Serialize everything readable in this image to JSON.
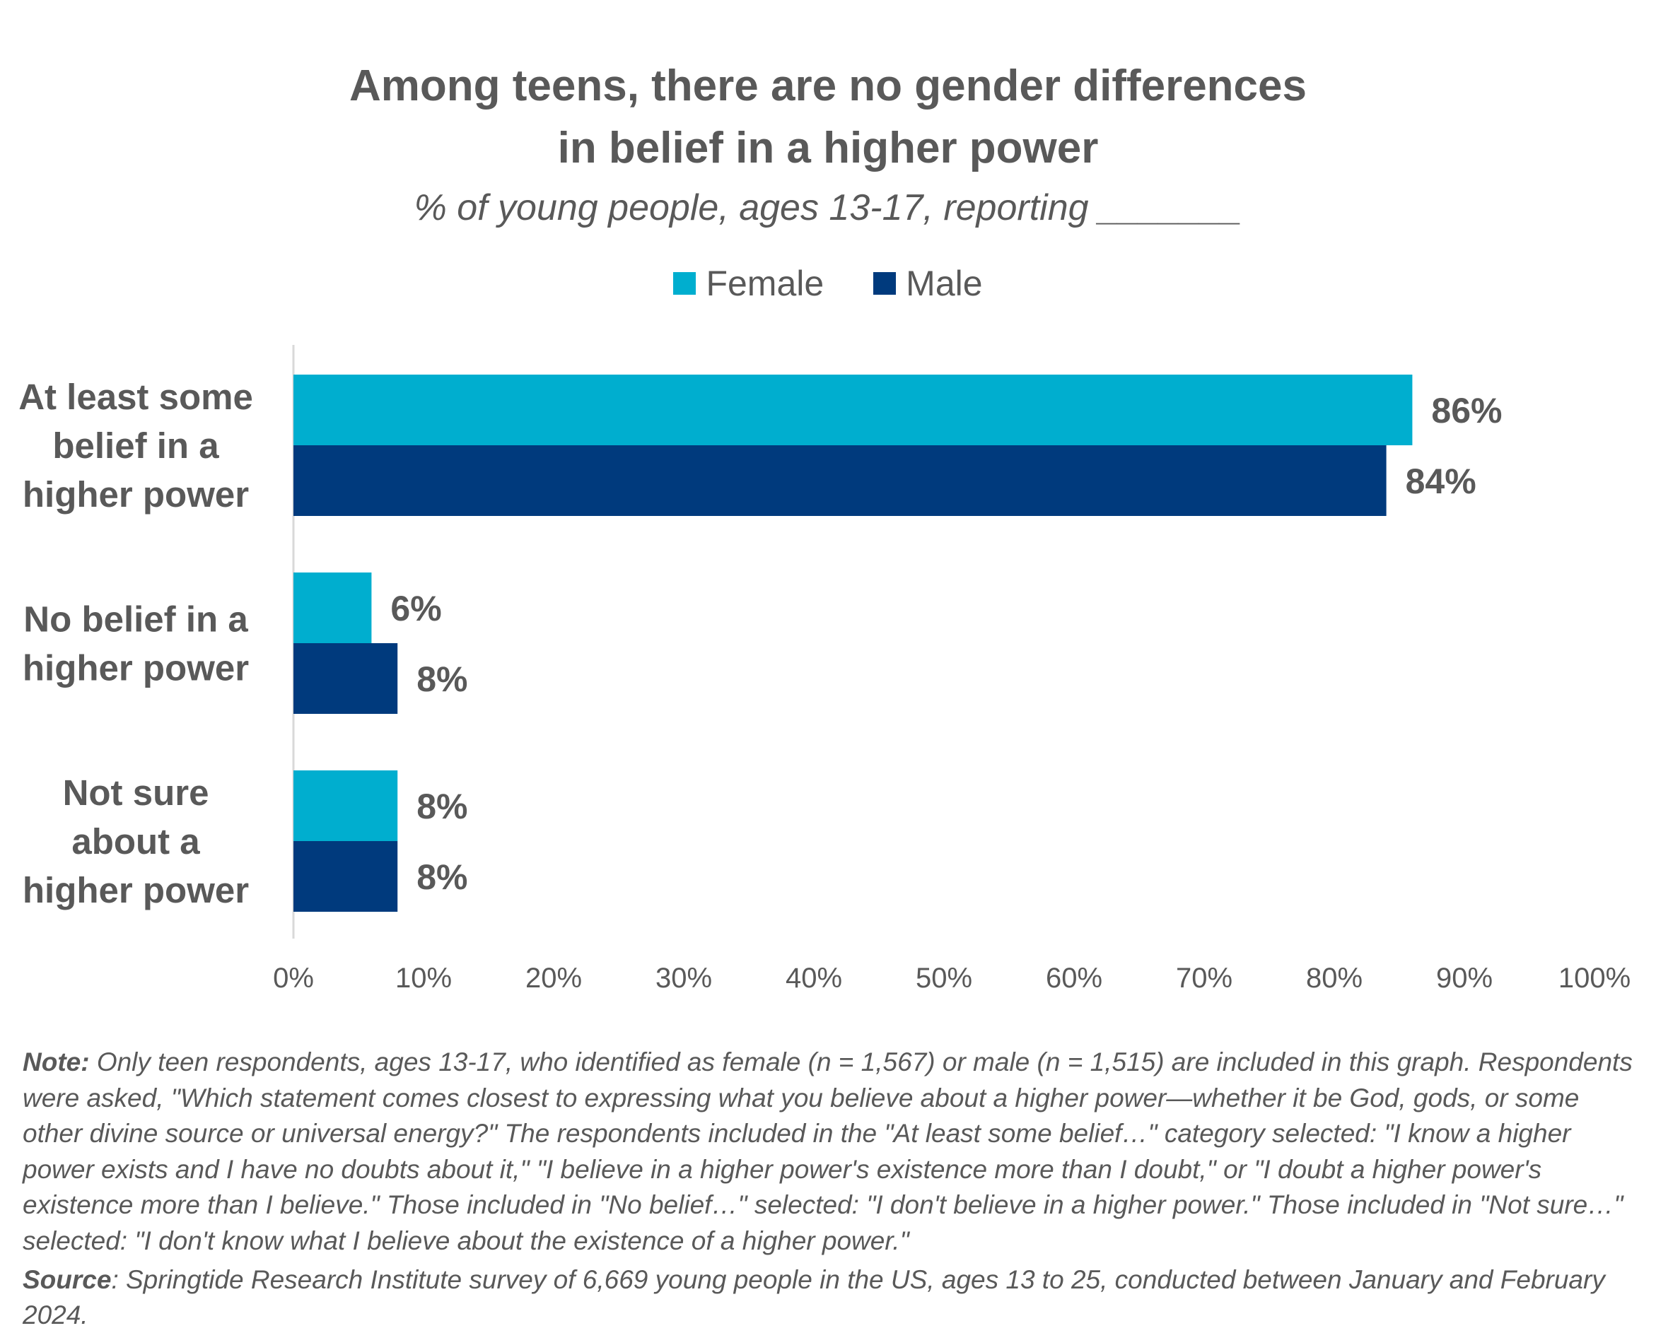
{
  "chart_data": {
    "type": "bar",
    "orientation": "horizontal",
    "title": "Among teens, there are no gender differences in belief in a higher power",
    "title_lines": [
      "Among teens, there are no gender differences",
      "in belief in a higher power"
    ],
    "subtitle": "% of young people, ages 13-17, reporting _______",
    "categories": [
      [
        "At least some",
        "belief in a",
        "higher power"
      ],
      [
        "No belief in a",
        "higher power"
      ],
      [
        "Not sure",
        "about a",
        "higher power"
      ]
    ],
    "series": [
      {
        "name": "Female",
        "color": "#00AECF",
        "values": [
          86,
          6,
          8
        ],
        "labels": [
          "86%",
          "6%",
          "8%"
        ]
      },
      {
        "name": "Male",
        "color": "#003A7D",
        "values": [
          84,
          8,
          8
        ],
        "labels": [
          "84%",
          "8%",
          "8%"
        ]
      }
    ],
    "xlim": [
      0,
      100
    ],
    "xticks": [
      "0%",
      "10%",
      "20%",
      "30%",
      "40%",
      "50%",
      "60%",
      "70%",
      "80%",
      "90%",
      "100%"
    ],
    "legend": "top-center",
    "grid": false
  },
  "note": {
    "label": "Note:",
    "text": " Only teen respondents, ages 13-17, who identified as female (n = 1,567) or male (n = 1,515) are included in this graph. Respondents were asked, \"Which statement comes closest to expressing what you believe about a higher power—whether it be God, gods, or some other divine source or universal energy?\" The respondents included in the \"At least some belief…\" category selected: \"I know a higher power exists and I have no doubts about it,\" \"I believe in a higher power's existence more than I doubt,\" or \"I doubt a higher power's existence more than I believe.\" Those included in \"No belief…\" selected: \"I don't believe in a higher power.\" Those included in \"Not sure…\" selected: \"I don't know what I believe about the existence of a higher power.\""
  },
  "source": {
    "label": "Source",
    "text": ": Springtide Research Institute survey of 6,669 young people in the US, ages 13 to 25, conducted between January and February 2024."
  }
}
